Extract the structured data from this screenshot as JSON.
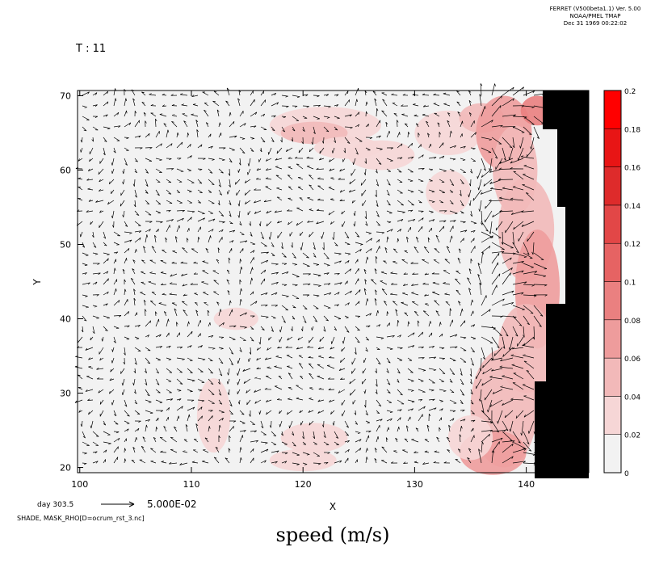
{
  "header": {
    "ferret_version": "FERRET (V500beta1.1) Ver. 5.00",
    "org": "NOAA/PMEL TMAP",
    "timestamp": "Dec 31 1969 00:22:02",
    "time_label": "T : 11"
  },
  "chart_data": {
    "type": "heatmap",
    "overlay": "vector-field",
    "xlabel": "X",
    "ylabel": "Y",
    "xlim": [
      99.8,
      145.6
    ],
    "ylim": [
      19.3,
      70.7
    ],
    "xticks": [
      "100",
      "110",
      "120",
      "130",
      "140"
    ],
    "yticks": [
      "20",
      "30",
      "40",
      "50",
      "60",
      "70"
    ],
    "colorbar": {
      "levels": [
        "0",
        "0.02",
        "0.04",
        "0.06",
        "0.08",
        "0.1",
        "0.12",
        "0.14",
        "0.16",
        "0.18",
        "0.2"
      ],
      "colors": [
        "#f2f2f2",
        "#f6d6d6",
        "#f2b9b9",
        "#ee9c9c",
        "#ea8080",
        "#e66363",
        "#e24747",
        "#de2b2b",
        "#e81515",
        "#ff0000"
      ]
    },
    "mask_color": "#000000",
    "vector_color": "#000000",
    "vector_key": {
      "label": "day  303.5",
      "value": "5.000E-02"
    },
    "caption": "SHADE, MASK_RHO[D=ocrum_rst_3.nc]"
  },
  "footer": {
    "title": "speed  (m/s)"
  }
}
